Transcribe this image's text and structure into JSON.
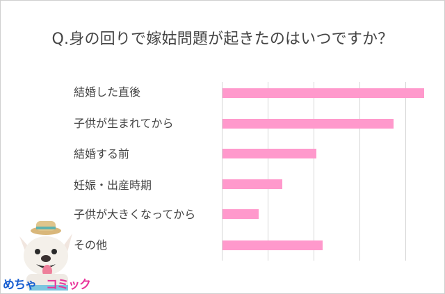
{
  "title": "Q.身の回りで嫁姑問題が起きたのはいつですか？",
  "chart_data": {
    "type": "bar",
    "orientation": "horizontal",
    "title": "Q.身の回りで嫁姑問題が起きたのはいつですか？",
    "categories": [
      "結婚した直後",
      "子供が生まれてから",
      "結婚する前",
      "妊娠・出産時期",
      "子供が大きくなってから",
      "その他"
    ],
    "values": [
      4.39,
      3.73,
      2.05,
      1.3,
      0.79,
      2.18
    ],
    "value_unit": "grid divisions (no axis tick labels shown)",
    "xlabel": "",
    "ylabel": "",
    "xlim": [
      0,
      5
    ],
    "grid": true,
    "gridlines_x": [
      0,
      1,
      2,
      3,
      4
    ],
    "legend": null,
    "bar_color": "#ff99cc"
  },
  "labels": [
    "結婚した直後",
    "子供が生まれてから",
    "結婚する前",
    "妊娠・出産時期",
    "子供が大きくなってから",
    "その他"
  ],
  "logo": {
    "part1": "めちゃ",
    "part2": "コミック"
  },
  "colors": {
    "bar": "#ff99cc",
    "grid": "#d6d6d6",
    "text": "#444444",
    "logo_blue": "#1a5fd1",
    "logo_pink": "#e8339a"
  }
}
